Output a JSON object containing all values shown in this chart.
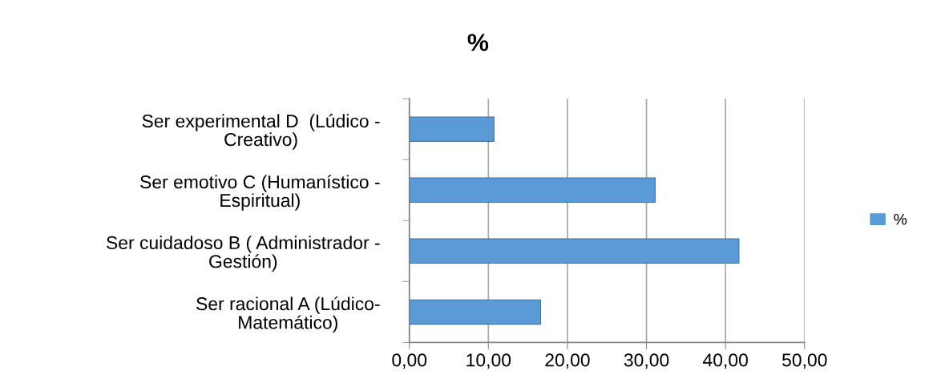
{
  "chart_data": {
    "type": "bar",
    "orientation": "horizontal",
    "title": "%",
    "categories": [
      "Ser experimental D  (Lúdico -\nCreativo)",
      "Ser emotivo C (Humanístico -\nEspiritual)",
      "Ser cuidadoso B ( Administrador -\nGestión)",
      "Ser racional A (Lúdico-\nMatemático)"
    ],
    "series": [
      {
        "name": "%",
        "color": "#5b9bd5",
        "values": [
          10.7,
          31.1,
          41.7,
          16.6
        ]
      }
    ],
    "xlim": [
      0,
      50
    ],
    "xticks": [
      {
        "value": 0,
        "label": "0,00"
      },
      {
        "value": 10,
        "label": "10,00"
      },
      {
        "value": 20,
        "label": "20,00"
      },
      {
        "value": 30,
        "label": "30,00"
      },
      {
        "value": 40,
        "label": "40,00"
      },
      {
        "value": 50,
        "label": "50,00"
      }
    ],
    "grid": "x",
    "legend": "right"
  }
}
